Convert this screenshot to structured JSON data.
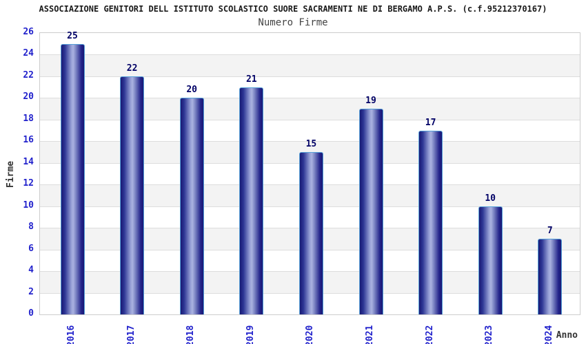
{
  "page": {
    "background": "#ffffff"
  },
  "chart_data": {
    "type": "bar",
    "title": "ASSOCIAZIONE GENITORI DELL ISTITUTO SCOLASTICO SUORE SACRAMENTI NE DI BERGAMO A.P.S. (c.f.95212370167)",
    "subtitle": "Numero Firme",
    "xlabel": "Anno",
    "ylabel": "Firme",
    "categories": [
      "2016",
      "2017",
      "2018",
      "2019",
      "2020",
      "2021",
      "2022",
      "2023",
      "2024"
    ],
    "values": [
      25,
      22,
      20,
      21,
      15,
      19,
      17,
      10,
      7
    ],
    "ylim": [
      0,
      26
    ],
    "ytick_step": 2,
    "grid": true,
    "legend": "none",
    "band_fill": "alternating",
    "colors": {
      "tick_label": "#2222cc",
      "value_label": "#000066",
      "title": "#1a1a1a",
      "subtitle": "#444444",
      "axis_label": "#333333",
      "plot_border": "#cccccc",
      "gridline": "#dddddd",
      "band_light": "#ffffff",
      "band_dark": "#f3f3f3",
      "bar_dark": "#191974",
      "bar_mid": "#2e3795",
      "bar_light": "#aab2e0",
      "bar_border": "#55a0d8"
    }
  }
}
